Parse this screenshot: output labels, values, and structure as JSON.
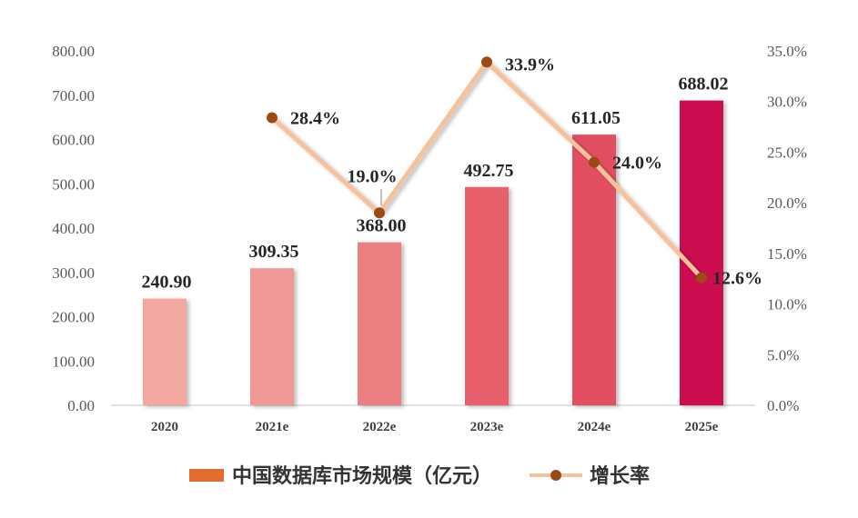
{
  "chart_data": {
    "type": "bar",
    "categories": [
      "2020",
      "2021e",
      "2022e",
      "2023e",
      "2024e",
      "2025e"
    ],
    "series": [
      {
        "name": "中国数据库市场规模（亿元）",
        "kind": "bar",
        "axis": "left",
        "values": [
          240.9,
          309.35,
          368.0,
          492.75,
          611.05,
          688.02
        ],
        "labels": [
          "240.90",
          "309.35",
          "368.00",
          "492.75",
          "611.05",
          "688.02"
        ],
        "colors": [
          "#f2a7a0",
          "#f09896",
          "#ec7f82",
          "#e8606c",
          "#e24f62",
          "#cc0e50"
        ]
      },
      {
        "name": "增长率",
        "kind": "line",
        "axis": "right",
        "values": [
          null,
          28.4,
          19.0,
          33.9,
          24.0,
          12.6
        ],
        "labels": [
          "",
          "28.4%",
          "19.0%",
          "33.9%",
          "24.0%",
          "12.6%"
        ],
        "line_color": "#f6c29c",
        "marker_color": "#9a4a12"
      }
    ],
    "y_left": {
      "min": 0,
      "max": 800,
      "step": 100,
      "tick_labels": [
        "0.00",
        "100.00",
        "200.00",
        "300.00",
        "400.00",
        "500.00",
        "600.00",
        "700.00",
        "800.00"
      ]
    },
    "y_right": {
      "min": 0,
      "max": 35,
      "step": 5,
      "tick_labels": [
        "0.0%",
        "5.0%",
        "10.0%",
        "15.0%",
        "20.0%",
        "25.0%",
        "30.0%",
        "35.0%"
      ]
    },
    "title": "",
    "xlabel": "",
    "ylabel": "",
    "grid": false,
    "legend": {
      "position": "bottom-center",
      "items": [
        {
          "label": "中国数据库市场规模（亿元）",
          "color": "#e36c2e",
          "shape": "rect"
        },
        {
          "label": "增长率",
          "color": "#f6c29c",
          "marker_color": "#9a4a12",
          "shape": "line-marker"
        }
      ]
    }
  }
}
